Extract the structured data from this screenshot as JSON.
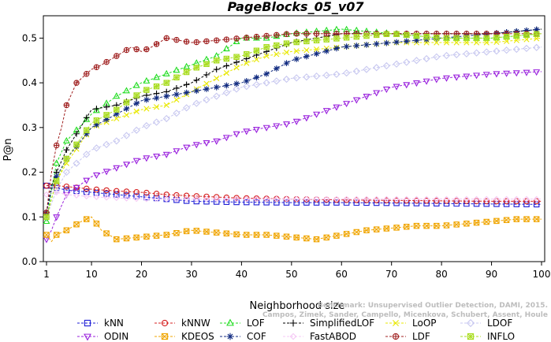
{
  "chart_data": {
    "type": "line",
    "title": "PageBlocks_05_v07",
    "xlabel": "Neighborhood size",
    "ylabel": "P@n",
    "xlim": [
      1,
      100
    ],
    "ylim": [
      0,
      0.55
    ],
    "xticks": [
      1,
      10,
      20,
      30,
      40,
      50,
      60,
      70,
      80,
      90,
      100
    ],
    "yticks": [
      0.0,
      0.1,
      0.2,
      0.3,
      0.4,
      0.5
    ],
    "grid": false,
    "legend_position": "bottom",
    "watermark_lines": [
      "Benchmark: Unsupervised Outlier Detection, DAMI, 2015.",
      "Campos, Zimek, Sander, Campello, Micenkova, Schubert, Assent, Houle"
    ],
    "series": [
      {
        "name": "kNN",
        "color": "#1f1fd6",
        "marker": "square",
        "x": [
          1,
          2,
          3,
          5,
          10,
          15,
          20,
          25,
          30,
          40,
          50,
          60,
          70,
          80,
          90,
          100
        ],
        "y": [
          0.17,
          0.17,
          0.165,
          0.16,
          0.155,
          0.15,
          0.145,
          0.14,
          0.135,
          0.133,
          0.132,
          0.132,
          0.131,
          0.13,
          0.129,
          0.128
        ]
      },
      {
        "name": "kNNW",
        "color": "#d62020",
        "marker": "circle",
        "x": [
          1,
          2,
          3,
          5,
          10,
          15,
          20,
          25,
          30,
          40,
          50,
          60,
          70,
          80,
          90,
          100
        ],
        "y": [
          0.17,
          0.172,
          0.17,
          0.168,
          0.162,
          0.158,
          0.155,
          0.15,
          0.147,
          0.142,
          0.14,
          0.138,
          0.137,
          0.136,
          0.135,
          0.135
        ]
      },
      {
        "name": "LOF",
        "color": "#22dd22",
        "marker": "triangle",
        "x": [
          1,
          2,
          3,
          5,
          10,
          15,
          20,
          25,
          30,
          35,
          40,
          45,
          50,
          60,
          70,
          80,
          90,
          100
        ],
        "y": [
          0.09,
          0.16,
          0.22,
          0.27,
          0.33,
          0.37,
          0.4,
          0.42,
          0.44,
          0.46,
          0.5,
          0.5,
          0.51,
          0.52,
          0.51,
          0.5,
          0.5,
          0.51
        ]
      },
      {
        "name": "SimplifiedLOF",
        "color": "#000000",
        "marker": "plus",
        "x": [
          1,
          2,
          3,
          5,
          10,
          15,
          20,
          25,
          30,
          35,
          40,
          45,
          50,
          60,
          70,
          80,
          90,
          100
        ],
        "y": [
          0.11,
          0.17,
          0.2,
          0.25,
          0.34,
          0.35,
          0.37,
          0.38,
          0.4,
          0.43,
          0.45,
          0.47,
          0.49,
          0.51,
          0.51,
          0.51,
          0.51,
          0.52
        ]
      },
      {
        "name": "LoOP",
        "color": "#e8e800",
        "marker": "x",
        "x": [
          1,
          2,
          3,
          5,
          10,
          15,
          20,
          25,
          30,
          35,
          40,
          45,
          50,
          60,
          70,
          80,
          90,
          100
        ],
        "y": [
          0.1,
          0.14,
          0.18,
          0.22,
          0.3,
          0.32,
          0.34,
          0.35,
          0.38,
          0.41,
          0.44,
          0.46,
          0.47,
          0.48,
          0.49,
          0.49,
          0.49,
          0.5
        ]
      },
      {
        "name": "LDOF",
        "color": "#c8c8f0",
        "marker": "diamond",
        "x": [
          1,
          2,
          3,
          5,
          10,
          15,
          20,
          25,
          30,
          35,
          40,
          45,
          50,
          60,
          70,
          80,
          90,
          100
        ],
        "y": [
          0.1,
          0.13,
          0.16,
          0.2,
          0.25,
          0.27,
          0.3,
          0.32,
          0.35,
          0.37,
          0.39,
          0.4,
          0.41,
          0.42,
          0.44,
          0.46,
          0.47,
          0.48
        ]
      },
      {
        "name": "ODIN",
        "color": "#9a22dd",
        "marker": "triangle-down",
        "x": [
          1,
          2,
          3,
          5,
          10,
          15,
          20,
          25,
          30,
          35,
          40,
          45,
          50,
          60,
          70,
          80,
          90,
          100
        ],
        "y": [
          0.05,
          0.07,
          0.1,
          0.15,
          0.19,
          0.21,
          0.23,
          0.24,
          0.26,
          0.27,
          0.29,
          0.3,
          0.31,
          0.35,
          0.39,
          0.41,
          0.42,
          0.425
        ]
      },
      {
        "name": "KDEOS",
        "color": "#f0a500",
        "marker": "square-x",
        "x": [
          1,
          2,
          3,
          5,
          8,
          10,
          12,
          15,
          20,
          25,
          30,
          35,
          40,
          45,
          50,
          55,
          60,
          65,
          70,
          75,
          80,
          85,
          90,
          95,
          100
        ],
        "y": [
          0.06,
          0.045,
          0.06,
          0.07,
          0.09,
          0.1,
          0.07,
          0.05,
          0.055,
          0.06,
          0.07,
          0.065,
          0.06,
          0.06,
          0.055,
          0.05,
          0.06,
          0.07,
          0.075,
          0.08,
          0.08,
          0.085,
          0.09,
          0.095,
          0.095
        ]
      },
      {
        "name": "COF",
        "color": "#102a80",
        "marker": "asterisk",
        "x": [
          1,
          2,
          3,
          5,
          10,
          15,
          20,
          25,
          30,
          35,
          40,
          45,
          50,
          60,
          70,
          80,
          90,
          100
        ],
        "y": [
          0.11,
          0.16,
          0.19,
          0.23,
          0.3,
          0.33,
          0.36,
          0.37,
          0.38,
          0.39,
          0.4,
          0.42,
          0.45,
          0.48,
          0.49,
          0.5,
          0.51,
          0.52
        ]
      },
      {
        "name": "FastABOD",
        "color": "#f5c8f5",
        "marker": "diamond-small",
        "x": [
          1,
          2,
          3,
          5,
          10,
          20,
          30,
          40,
          50,
          60,
          70,
          80,
          90,
          100
        ],
        "y": [
          0.15,
          0.155,
          0.155,
          0.15,
          0.145,
          0.14,
          0.14,
          0.14,
          0.14,
          0.14,
          0.14,
          0.14,
          0.14,
          0.14
        ]
      },
      {
        "name": "LDF",
        "color": "#a02020",
        "marker": "circle-plus",
        "x": [
          1,
          2,
          3,
          4,
          5,
          7,
          10,
          12,
          15,
          18,
          20,
          22,
          25,
          30,
          40,
          50,
          60,
          70,
          80,
          90,
          100
        ],
        "y": [
          0.11,
          0.2,
          0.26,
          0.3,
          0.35,
          0.4,
          0.43,
          0.44,
          0.46,
          0.48,
          0.47,
          0.48,
          0.5,
          0.49,
          0.5,
          0.51,
          0.51,
          0.51,
          0.51,
          0.51,
          0.51
        ]
      },
      {
        "name": "INFLO",
        "color": "#aadd22",
        "marker": "square-star",
        "x": [
          1,
          2,
          3,
          5,
          10,
          15,
          20,
          25,
          30,
          35,
          40,
          45,
          50,
          60,
          70,
          80,
          90,
          100
        ],
        "y": [
          0.1,
          0.14,
          0.18,
          0.23,
          0.31,
          0.34,
          0.38,
          0.4,
          0.43,
          0.45,
          0.46,
          0.48,
          0.49,
          0.5,
          0.51,
          0.5,
          0.5,
          0.51
        ]
      }
    ]
  }
}
